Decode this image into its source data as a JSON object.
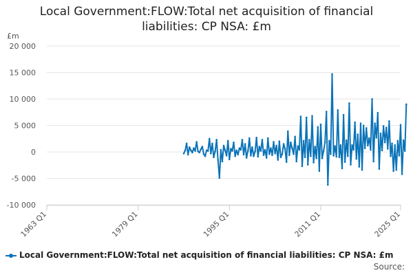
{
  "chart_data": {
    "type": "line",
    "title_line1": "Local Government:FLOW:Total net acquisition of financial",
    "title_line2": "liabilities: CP NSA: £m",
    "ylabel": "£m",
    "ylim": [
      -10000,
      20000
    ],
    "yticks": [
      20000,
      15000,
      10000,
      5000,
      0,
      -5000,
      -10000
    ],
    "ytick_labels": [
      "20 000",
      "15 000",
      "10 000",
      "5 000",
      "0",
      "-5 000",
      "-10 000"
    ],
    "xlim": [
      1963.0,
      2025.0
    ],
    "xticks": [
      1963.0,
      1979.0,
      1995.0,
      2011.0,
      2025.0
    ],
    "xtick_labels": [
      "1963 Q1",
      "1979 Q1",
      "1995 Q1",
      "2011 Q1",
      "2025 Q1"
    ],
    "legend": "Local Government:FLOW:Total net acquisition of financial liabilities: CP NSA: £m",
    "source_label": "Source:",
    "color": "#0a73b8",
    "series": [
      {
        "name": "Local Government:FLOW:Total net acquisition of financial liabilities: CP NSA: £m",
        "start": 1987.0,
        "step": 0.25,
        "values": [
          -300,
          300,
          1600,
          -500,
          900,
          300,
          -100,
          700,
          200,
          1900,
          100,
          -100,
          500,
          1000,
          -400,
          -800,
          300,
          200,
          2500,
          -300,
          1600,
          -1000,
          100,
          2300,
          -1500,
          -4900,
          400,
          -1800,
          1200,
          300,
          -700,
          2100,
          -1400,
          600,
          200,
          1800,
          -800,
          300,
          -500,
          700,
          400,
          2300,
          -500,
          1500,
          -1100,
          200,
          2600,
          -700,
          900,
          -800,
          100,
          2700,
          -900,
          1000,
          200,
          2300,
          -600,
          400,
          -1100,
          2600,
          -400,
          700,
          -600,
          1900,
          -300,
          1200,
          -1500,
          2000,
          -1000,
          -400,
          1500,
          600,
          -1900,
          3900,
          -600,
          1800,
          700,
          -400,
          2900,
          -1800,
          1100,
          400,
          6700,
          -2700,
          2100,
          -1000,
          6500,
          -2400,
          2300,
          -800,
          6800,
          -2000,
          1000,
          -1200,
          4700,
          -3600,
          5200,
          -1200,
          200,
          1800,
          7600,
          -6200,
          2100,
          -400,
          14700,
          -700,
          1100,
          -900,
          7900,
          -1000,
          1300,
          -3100,
          7000,
          -1900,
          2200,
          -800,
          9200,
          -2400,
          1300,
          400,
          5600,
          -1300,
          3300,
          -2800,
          5400,
          -3400,
          5000,
          700,
          4500,
          1200,
          2600,
          400,
          10000,
          -1800,
          5400,
          2700,
          7400,
          -3200,
          3500,
          300,
          4900,
          1800,
          4600,
          600,
          5800,
          -800,
          1600,
          -3600,
          1300,
          -3400,
          2100,
          -700,
          5100,
          -4200,
          2200,
          200,
          9000
        ]
      }
    ]
  }
}
